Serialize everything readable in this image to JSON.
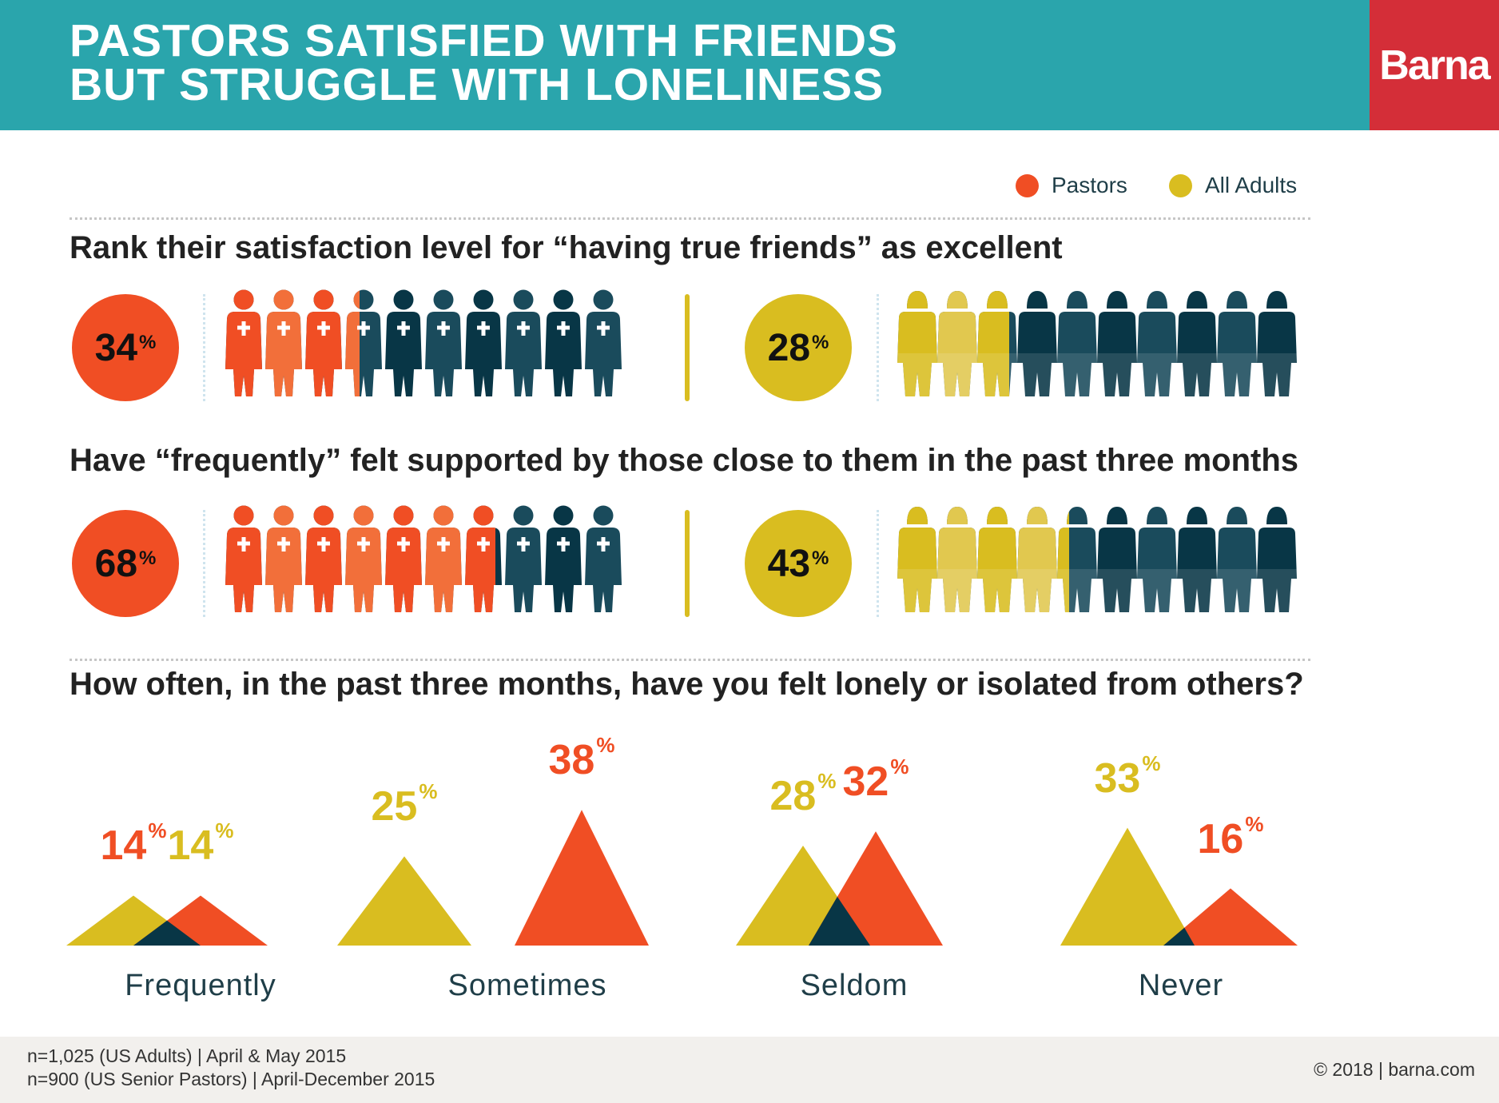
{
  "header": {
    "title_line1": "PASTORS SATISFIED WITH FRIENDS",
    "title_line2": "BUT STRUGGLE WITH LONELINESS",
    "logo": "Barna"
  },
  "colors": {
    "pastors": "#f04e24",
    "pastors_alt": "#f26f3a",
    "adults": "#d9bd20",
    "adults_alt": "#e1c84f",
    "navy": "#1a4b5c",
    "navy_alt": "#083646",
    "teal": "#2aa5ac",
    "brand_red": "#d42e38"
  },
  "legend": [
    {
      "label": "Pastors",
      "color": "#f04e24"
    },
    {
      "label": "All Adults",
      "color": "#d9bd20"
    }
  ],
  "chart_data": [
    {
      "type": "pictogram",
      "title": "Rank their satisfaction level for “having true friends” as excellent",
      "series": [
        {
          "name": "Pastors",
          "value": 34,
          "label": "34",
          "icons": 10
        },
        {
          "name": "All Adults",
          "value": 28,
          "label": "28",
          "icons": 10
        }
      ]
    },
    {
      "type": "pictogram",
      "title": "Have “frequently” felt supported by those close to them in the past three months",
      "series": [
        {
          "name": "Pastors",
          "value": 68,
          "label": "68",
          "icons": 10
        },
        {
          "name": "All Adults",
          "value": 43,
          "label": "43",
          "icons": 10
        }
      ]
    },
    {
      "type": "area",
      "title": "How often, in the past three months, have you felt lonely or isolated from others?",
      "categories": [
        "Frequently",
        "Sometimes",
        "Seldom",
        "Never"
      ],
      "series": [
        {
          "name": "All Adults",
          "values": [
            14,
            25,
            28,
            33
          ]
        },
        {
          "name": "Pastors",
          "values": [
            14,
            38,
            32,
            16
          ]
        }
      ]
    }
  ],
  "footer": {
    "note1": "n=1,025 (US Adults) | April & May 2015",
    "note2": "n=900 (US Senior Pastors) | April-December 2015",
    "copyright": "© 2018 | barna.com"
  }
}
